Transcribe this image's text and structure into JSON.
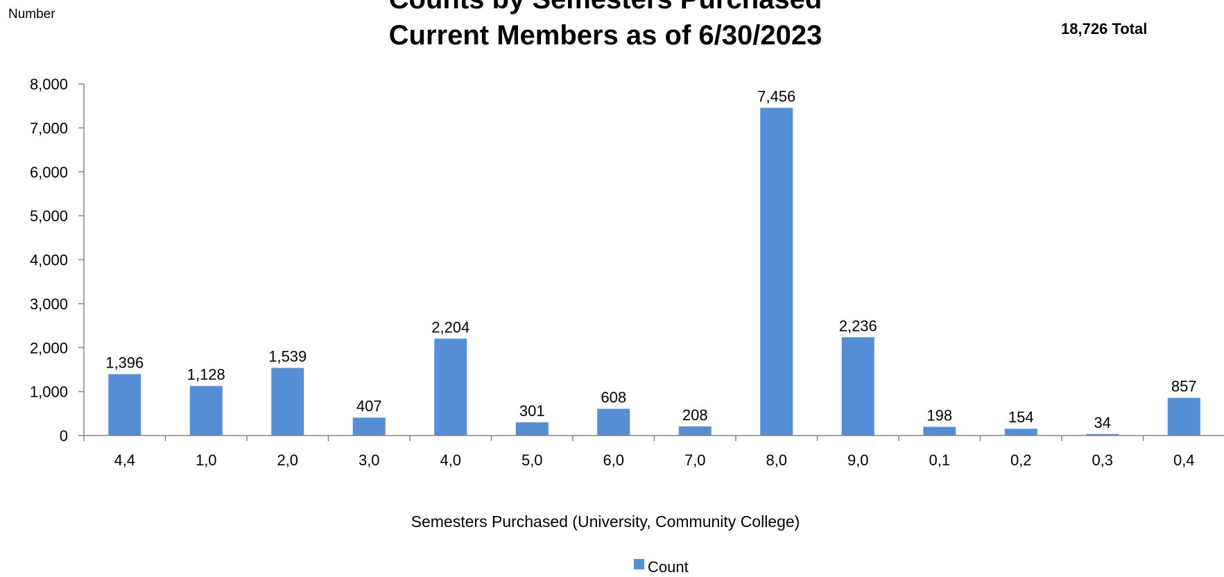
{
  "chart_data": {
    "type": "bar",
    "title_line1": "Counts by Semesters Purchased",
    "title_line2": "Current Members as of 6/30/2023",
    "ylabel": "Number",
    "total_label": "18,726 Total",
    "xlabel": "Semesters Purchased (University, Community College)",
    "ylim": [
      0,
      8000
    ],
    "yticks": [
      0,
      1000,
      2000,
      3000,
      4000,
      5000,
      6000,
      7000,
      8000
    ],
    "ytick_labels": [
      "0",
      "1,000",
      "2,000",
      "3,000",
      "4,000",
      "5,000",
      "6,000",
      "7,000",
      "8,000"
    ],
    "categories": [
      "4,4",
      "1,0",
      "2,0",
      "3,0",
      "4,0",
      "5,0",
      "6,0",
      "7,0",
      "8,0",
      "9,0",
      "0,1",
      "0,2",
      "0,3",
      "0,4"
    ],
    "series": [
      {
        "name": "Count",
        "color": "#558ed5",
        "values": [
          1396,
          1128,
          1539,
          407,
          2204,
          301,
          608,
          208,
          7456,
          2236,
          198,
          154,
          34,
          857
        ],
        "value_labels": [
          "1,396",
          "1,128",
          "1,539",
          "407",
          "2,204",
          "301",
          "608",
          "208",
          "7,456",
          "2,236",
          "198",
          "154",
          "34",
          "857"
        ]
      }
    ],
    "legend_position": "bottom",
    "grid": false
  }
}
